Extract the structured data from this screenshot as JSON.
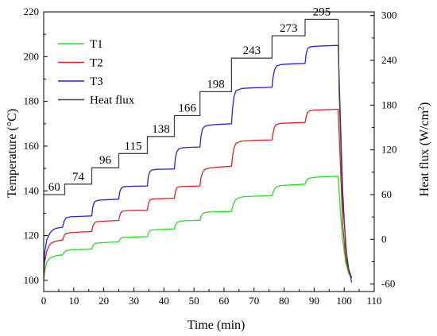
{
  "chart_data": {
    "type": "line",
    "xlabel": "Time (min)",
    "ylabel_left": "Temperature (°C)",
    "ylabel_right_main": "Heat flux (W/cm",
    "ylabel_right_sup": "2",
    "ylabel_right_end": ")",
    "xlim": [
      0,
      110
    ],
    "ylim_left": [
      95,
      220
    ],
    "ylim_right": [
      -70,
      305
    ],
    "x_ticks": [
      0,
      10,
      20,
      30,
      40,
      50,
      60,
      70,
      80,
      90,
      100,
      110
    ],
    "y_left_ticks": [
      100,
      120,
      140,
      160,
      180,
      200,
      220
    ],
    "y_right_ticks": [
      -60,
      0,
      60,
      120,
      180,
      240,
      300
    ],
    "grid": false,
    "legend_position": "top-left",
    "series": [
      {
        "name": "T1",
        "axis": "left",
        "color": "#22dd22",
        "x": [
          0,
          0.3,
          1,
          2,
          3,
          4,
          6.3,
          6.8,
          7.5,
          9,
          12,
          16,
          16.3,
          16.8,
          17.5,
          19,
          22,
          25,
          25.3,
          25.8,
          26.5,
          28,
          31,
          34.5,
          34.8,
          35.3,
          36,
          37.5,
          40.5,
          43.5,
          43.8,
          44.3,
          45,
          46.5,
          49.5,
          52,
          52.3,
          52.8,
          53.5,
          55,
          58,
          62.5,
          62.8,
          63.3,
          64,
          66,
          70,
          76,
          76.3,
          76.8,
          77.5,
          79,
          83,
          87,
          87.3,
          87.8,
          88.5,
          90,
          93,
          98,
          98.8,
          99.5,
          100.5,
          101.5,
          102.5
        ],
        "values": [
          100,
          104,
          108,
          110,
          110.5,
          111,
          111.4,
          112.5,
          113.3,
          113.6,
          113.8,
          114,
          115.2,
          116.2,
          116.6,
          116.8,
          117,
          117.2,
          118.2,
          118.9,
          119.2,
          119.3,
          119.4,
          119.5,
          120.8,
          122,
          122.5,
          122.7,
          122.9,
          123,
          124.5,
          125.8,
          126.3,
          126.6,
          126.8,
          126.9,
          128.3,
          129.6,
          130.2,
          130.5,
          130.7,
          130.8,
          132.5,
          134.5,
          136.3,
          137.3,
          137.6,
          137.8,
          139.2,
          140.8,
          141.8,
          142.4,
          142.7,
          143,
          144.2,
          145.2,
          145.7,
          146,
          146.3,
          146.5,
          130,
          118,
          108,
          103,
          101
        ]
      },
      {
        "name": "T2",
        "axis": "left",
        "color": "#dd2222",
        "x": [
          0,
          0.3,
          1,
          2,
          3,
          4,
          6.3,
          6.8,
          7.5,
          9,
          12,
          16,
          16.3,
          16.8,
          17.5,
          19,
          22,
          25,
          25.3,
          25.8,
          26.5,
          28,
          31,
          34.5,
          34.8,
          35.3,
          36,
          37.5,
          40.5,
          43.5,
          43.8,
          44.3,
          45,
          46.5,
          49.5,
          52,
          52.3,
          52.8,
          53.5,
          55,
          58,
          62.5,
          62.8,
          63.3,
          64,
          66,
          70,
          76,
          76.3,
          76.8,
          77.5,
          79,
          83,
          87,
          87.3,
          87.8,
          88.5,
          90,
          93,
          98,
          98.8,
          99.5,
          100.5,
          101.5,
          102.5
        ],
        "values": [
          101,
          108,
          113,
          116,
          117,
          117.5,
          118,
          120,
          121,
          121.3,
          121.6,
          121.8,
          124,
          125.5,
          126.2,
          126.4,
          126.6,
          126.8,
          129,
          130.5,
          131,
          131.2,
          131.3,
          131.4,
          134,
          135.8,
          136.3,
          136.5,
          136.6,
          136.7,
          139.5,
          141.3,
          141.8,
          142,
          142.1,
          142.2,
          145.5,
          148,
          149.5,
          150.2,
          150.6,
          151,
          155,
          159,
          161.3,
          162.3,
          162.6,
          162.8,
          165.5,
          168.5,
          169.7,
          170.2,
          170.4,
          170.6,
          173,
          175,
          175.8,
          176.1,
          176.3,
          176.5,
          150,
          125,
          110,
          104,
          101
        ]
      },
      {
        "name": "T3",
        "axis": "left",
        "color": "#2222dd",
        "x": [
          0,
          0.3,
          1,
          2,
          3,
          4,
          6.3,
          6.8,
          7.5,
          9,
          12,
          16,
          16.3,
          16.8,
          17.5,
          19,
          22,
          25,
          25.3,
          25.8,
          26.5,
          28,
          31,
          34.5,
          34.8,
          35.3,
          36,
          37.5,
          40.5,
          43.5,
          43.8,
          44.3,
          45,
          46.5,
          49.5,
          52,
          52.3,
          52.8,
          53.5,
          55,
          58,
          62.5,
          62.8,
          63.3,
          64,
          66,
          70,
          76,
          76.3,
          76.8,
          77.5,
          79,
          83,
          87,
          87.3,
          87.8,
          88.5,
          90,
          93,
          98,
          98.8,
          99.5,
          100.5,
          101.5,
          102.5
        ],
        "values": [
          103,
          112,
          118,
          121,
          122.5,
          123.2,
          123.8,
          126.5,
          128,
          128.4,
          128.6,
          128.8,
          132.5,
          134.8,
          135.6,
          135.9,
          136.1,
          136.3,
          139.5,
          141.2,
          141.8,
          142,
          142.1,
          142.2,
          146.5,
          148.5,
          149.3,
          149.6,
          149.7,
          149.8,
          154.5,
          157.5,
          158.8,
          159.3,
          159.5,
          159.6,
          164,
          167.5,
          168.8,
          169.4,
          169.7,
          170,
          176,
          182,
          184.8,
          185.8,
          186.1,
          186.3,
          190.5,
          194,
          195.8,
          196.5,
          196.8,
          197,
          201,
          203.5,
          204.3,
          204.6,
          204.8,
          205,
          170,
          140,
          115,
          105,
          101
        ]
      },
      {
        "name": "Heat flux",
        "axis": "right",
        "color": "#444444",
        "x": [
          0,
          7,
          7,
          16,
          16,
          25,
          25,
          34.5,
          34.5,
          43.5,
          43.5,
          52,
          52,
          62.5,
          62.5,
          76,
          76,
          87,
          87,
          98,
          98.3,
          99.5,
          101,
          102.5
        ],
        "values": [
          60,
          60,
          74,
          74,
          96,
          96,
          115,
          115,
          138,
          138,
          166,
          166,
          198,
          198,
          243,
          243,
          273,
          273,
          295,
          295,
          200,
          50,
          -30,
          -58
        ]
      }
    ],
    "annotations": [
      "60",
      "74",
      "96",
      "115",
      "138",
      "166",
      "198",
      "243",
      "273",
      "295"
    ]
  }
}
